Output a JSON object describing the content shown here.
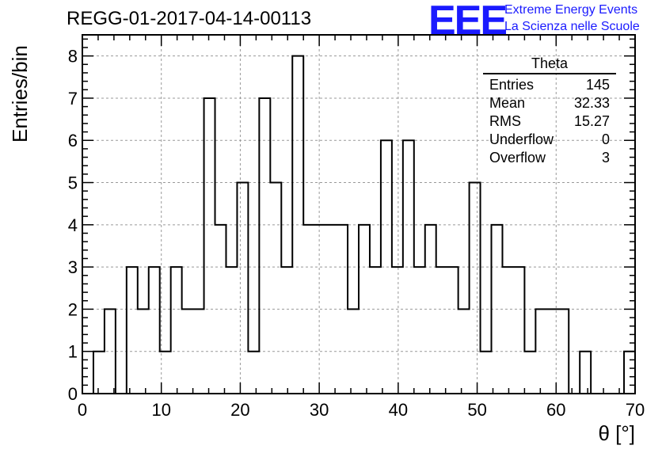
{
  "header": {
    "title": "REGG-01-2017-04-14-00113",
    "logo": "EEE",
    "org_line1": "Extreme Energy Events",
    "org_line2": "La Scienza nelle Scuole"
  },
  "stats": {
    "title": "Theta",
    "rows": [
      {
        "label": "Entries",
        "value": "145"
      },
      {
        "label": "Mean",
        "value": "32.33"
      },
      {
        "label": "RMS",
        "value": "15.27"
      },
      {
        "label": "Underflow",
        "value": "0"
      },
      {
        "label": "Overflow",
        "value": "3"
      }
    ]
  },
  "chart_data": {
    "type": "bar",
    "title": "REGG-01-2017-04-14-00113",
    "xlabel": "θ [°]",
    "ylabel": "Entries/bin",
    "xlim": [
      0,
      70
    ],
    "ylim": [
      0,
      8.5
    ],
    "bin_width": 1.4,
    "xticks": [
      0,
      10,
      20,
      30,
      40,
      50,
      60,
      70
    ],
    "yticks": [
      0,
      1,
      2,
      3,
      4,
      5,
      6,
      7,
      8
    ],
    "grid": true,
    "values": [
      0,
      1,
      2,
      0,
      3,
      2,
      3,
      1,
      3,
      2,
      2,
      7,
      4,
      3,
      5,
      1,
      7,
      5,
      3,
      8,
      4,
      4,
      4,
      4,
      2,
      4,
      3,
      6,
      3,
      6,
      3,
      4,
      3,
      3,
      2,
      5,
      1,
      4,
      3,
      3,
      1,
      2,
      2,
      2,
      0,
      1,
      0,
      0,
      0,
      1
    ]
  }
}
